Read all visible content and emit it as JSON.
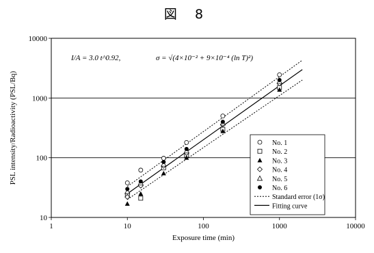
{
  "figure_title": "図 8",
  "formula": {
    "fit": "I/A = 3.0 t^0.92,",
    "sigma": "σ = √(4×10⁻² + 9×10⁻⁴ (ln T)²)"
  },
  "chart_data": {
    "type": "scatter",
    "title": "",
    "xlabel": "Exposure time (min)",
    "ylabel": "PSL intensity/Radioactivity (PSL/Bq)",
    "xscale": "log",
    "yscale": "log",
    "xlim": [
      1,
      10000
    ],
    "ylim": [
      10,
      10000
    ],
    "x_ticks": [
      "1",
      "10",
      "100",
      "1000",
      "10000"
    ],
    "y_ticks": [
      "10",
      "100",
      "1000",
      "10000"
    ],
    "reference_lines_y": [
      100,
      1000
    ],
    "legend_position": "lower-right",
    "series": [
      {
        "name": "No. 1",
        "marker": "open-circle",
        "x": [
          10,
          15,
          30,
          60,
          180,
          1000
        ],
        "y": [
          38,
          62,
          98,
          180,
          500,
          2450
        ]
      },
      {
        "name": "No. 2",
        "marker": "open-square",
        "x": [
          10,
          15,
          30,
          60,
          180,
          1000
        ],
        "y": [
          24,
          21,
          68,
          110,
          300,
          1500
        ]
      },
      {
        "name": "No. 3",
        "marker": "filled-triangle",
        "x": [
          10,
          15,
          30,
          60,
          180,
          1000
        ],
        "y": [
          17,
          25,
          55,
          100,
          280,
          1380
        ]
      },
      {
        "name": "No. 4",
        "marker": "open-diamond",
        "x": [
          10,
          15,
          30,
          60,
          180,
          1000
        ],
        "y": [
          22,
          34,
          73,
          120,
          360,
          1750
        ]
      },
      {
        "name": "No. 5",
        "marker": "open-triangle",
        "x": [
          10,
          15,
          30,
          60,
          180,
          1000
        ],
        "y": [
          27,
          38,
          78,
          130,
          380,
          1900
        ]
      },
      {
        "name": "No. 6",
        "marker": "filled-circle",
        "x": [
          10,
          15,
          30,
          60,
          180,
          1000
        ],
        "y": [
          30,
          40,
          85,
          140,
          400,
          2000
        ]
      }
    ],
    "lines": [
      {
        "name": "Standard error (1σ)",
        "style": "dotted",
        "x": [
          10,
          2000
        ],
        "y": [
          33,
          4300
        ]
      },
      {
        "name": "Standard error (1σ)",
        "style": "dotted",
        "x": [
          10,
          2000
        ],
        "y": [
          20,
          2000
        ]
      },
      {
        "name": "Fitting curve",
        "style": "solid",
        "x": [
          10,
          2000
        ],
        "y": [
          25,
          3000
        ]
      }
    ]
  }
}
